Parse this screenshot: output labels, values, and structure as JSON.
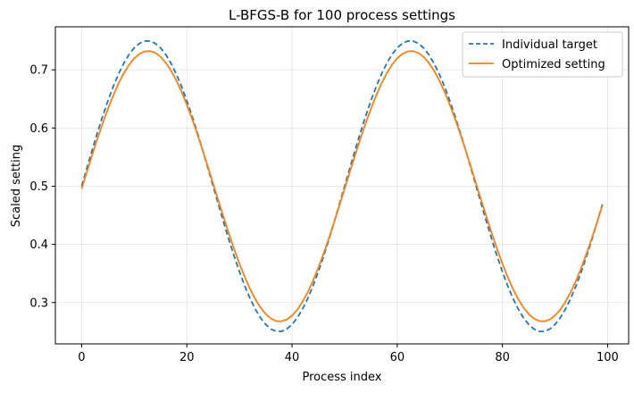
{
  "chart_data": {
    "type": "line",
    "title": "L-BFGS-B for 100 process settings",
    "xlabel": "Process index",
    "ylabel": "Scaled setting",
    "xlim": [
      -5,
      104
    ],
    "ylim": [
      0.229,
      0.774
    ],
    "xticks": [
      0,
      20,
      40,
      60,
      80,
      100
    ],
    "yticks": [
      0.3,
      0.4,
      0.5,
      0.6,
      0.7
    ],
    "grid": true,
    "legend_position": "top-right",
    "x": "0..99 (integer process index)",
    "series": [
      {
        "name": "Individual target",
        "style": "dashed",
        "color": "#1f77b4",
        "description": "0.5 + 0.25*sin(2*pi*i/50)",
        "offset": 0.5,
        "amplitude": 0.25,
        "period": 50,
        "count": 100
      },
      {
        "name": "Optimized setting",
        "style": "solid",
        "color": "#ff7f0e",
        "description": "0.5 + 0.2325*sin(2*pi*i/50) with slight lag",
        "offset": 0.5,
        "amplitude": 0.2325,
        "period": 50,
        "count": 100
      }
    ]
  }
}
